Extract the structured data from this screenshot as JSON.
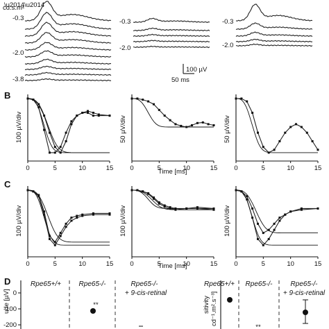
{
  "panels": {
    "A": {
      "unit_label": "cd.s.m²",
      "intensity_labels_left": [
        "-0.3",
        "-2.0",
        "-3.8"
      ],
      "intensity_labels_mid": [
        "-0.3",
        "-2.0"
      ],
      "intensity_labels_right": [
        "-0.3",
        "-2.0"
      ],
      "scalebar_voltage": "100 µV",
      "scalebar_time": "50 ms"
    },
    "B": {
      "label": "B",
      "ylabels": [
        "100 µV/div",
        "50 µV/div",
        "50 µV/div"
      ],
      "xlabel": "Time [ms]",
      "xticks": [
        "0",
        "5",
        "10",
        "15"
      ]
    },
    "C": {
      "label": "C",
      "ylabels": [
        "100 µV/div",
        "100 µV/div",
        "100 µV/div"
      ],
      "xlabel": "Time [ms]",
      "xticks": [
        "0",
        "5",
        "10",
        "15"
      ]
    },
    "D": {
      "label": "D",
      "left_ylabel": "ude [µV]",
      "left_yticks": [
        "0",
        "-100",
        "-200"
      ],
      "genotypes_left": [
        "Rpe65+/+",
        "Rpe65-/-",
        "Rpe65-/-"
      ],
      "genotype_note_left": "+ 9-cis-retinal",
      "significance_left": "**",
      "right_ylabel_1": "sitivity",
      "right_ylabel_2": "cd⁻¹.m².s⁻³]",
      "genotypes_right": [
        "Rpe65+/+",
        "Rpe65-/-",
        "Rpe65-/-"
      ],
      "genotype_note_right": "+ 9-cis-retinal",
      "significance_right": "**"
    }
  },
  "chart_data": [
    {
      "type": "line",
      "panel": "B",
      "xlabel": "Time [ms]",
      "xlim": [
        0,
        15
      ],
      "subplots": [
        {
          "ylabel": "100 µV/div",
          "series": [
            {
              "x": [
                0,
                1,
                2,
                3,
                4,
                5,
                6,
                7,
                8,
                9,
                10,
                11,
                12,
                13,
                15
              ],
              "y": [
                0,
                -0.02,
                -0.15,
                -0.55,
                -0.95,
                -0.95,
                -0.85,
                -0.6,
                -0.4,
                -0.3,
                -0.25,
                -0.25,
                -0.3,
                -0.3,
                -0.3
              ]
            },
            {
              "x": [
                0,
                1,
                2,
                3,
                4,
                5,
                6,
                7,
                8,
                9,
                10,
                11,
                12,
                13,
                15
              ],
              "y": [
                0,
                -0.02,
                -0.1,
                -0.3,
                -0.6,
                -0.85,
                -0.95,
                -0.75,
                -0.45,
                -0.3,
                -0.25,
                -0.22,
                -0.25,
                -0.28,
                -0.3
              ]
            }
          ]
        },
        {
          "ylabel": "50 µV/div",
          "series": [
            {
              "x": [
                0,
                1,
                2,
                3,
                4,
                5,
                6,
                7,
                8,
                9,
                10,
                11,
                12,
                13,
                14,
                15
              ],
              "y": [
                0,
                0,
                -0.02,
                -0.05,
                -0.1,
                -0.2,
                -0.3,
                -0.38,
                -0.45,
                -0.48,
                -0.5,
                -0.47,
                -0.43,
                -0.42,
                -0.45,
                -0.47
              ]
            }
          ]
        },
        {
          "ylabel": "50 µV/div",
          "series": [
            {
              "x": [
                0,
                1,
                2,
                3,
                4,
                5,
                6,
                7,
                8,
                9,
                10,
                11,
                12,
                13,
                14,
                15
              ],
              "y": [
                0,
                0,
                -0.05,
                -0.25,
                -0.6,
                -0.85,
                -0.95,
                -0.9,
                -0.75,
                -0.6,
                -0.5,
                -0.45,
                -0.5,
                -0.6,
                -0.75,
                -0.9
              ]
            }
          ]
        }
      ]
    },
    {
      "type": "line",
      "panel": "C",
      "xlabel": "Time [ms]",
      "xlim": [
        0,
        15
      ],
      "subplots": [
        {
          "ylabel": "100 µV/div",
          "series": [
            {
              "x": [
                0,
                1,
                2,
                3,
                4,
                5,
                6,
                7,
                8,
                9,
                10,
                12,
                15
              ],
              "y": [
                0,
                -0.02,
                -0.1,
                -0.4,
                -0.8,
                -0.9,
                -0.75,
                -0.6,
                -0.5,
                -0.45,
                -0.42,
                -0.4,
                -0.4
              ]
            },
            {
              "x": [
                0,
                1,
                2,
                3,
                4,
                5,
                6,
                7,
                8,
                9,
                10,
                12,
                15
              ],
              "y": [
                0,
                -0.02,
                -0.08,
                -0.35,
                -0.75,
                -0.85,
                -0.7,
                -0.55,
                -0.45,
                -0.42,
                -0.4,
                -0.38,
                -0.38
              ]
            }
          ]
        },
        {
          "ylabel": "100 µV/div",
          "series": [
            {
              "x": [
                0,
                1,
                2,
                3,
                4,
                5,
                6,
                7,
                8,
                10,
                12,
                15
              ],
              "y": [
                0,
                0,
                -0.02,
                -0.05,
                -0.12,
                -0.2,
                -0.25,
                -0.28,
                -0.3,
                -0.3,
                -0.28,
                -0.3
              ]
            },
            {
              "x": [
                0,
                1,
                2,
                3,
                4,
                5,
                6,
                7,
                8,
                10,
                12,
                15
              ],
              "y": [
                0,
                0,
                -0.02,
                -0.06,
                -0.14,
                -0.22,
                -0.27,
                -0.3,
                -0.32,
                -0.3,
                -0.3,
                -0.32
              ]
            }
          ]
        },
        {
          "ylabel": "100 µV/div",
          "series": [
            {
              "x": [
                0,
                1,
                2,
                3,
                4,
                5,
                6,
                7,
                8,
                9,
                10,
                12,
                15
              ],
              "y": [
                0,
                -0.02,
                -0.15,
                -0.45,
                -0.8,
                -0.9,
                -0.8,
                -0.65,
                -0.5,
                -0.4,
                -0.35,
                -0.3,
                -0.3
              ]
            },
            {
              "x": [
                0,
                1,
                2,
                3,
                4,
                5,
                6,
                7,
                8,
                9,
                10,
                12,
                15
              ],
              "y": [
                0,
                -0.02,
                -0.1,
                -0.3,
                -0.55,
                -0.7,
                -0.65,
                -0.55,
                -0.45,
                -0.4,
                -0.35,
                -0.32,
                -0.3
              ]
            }
          ]
        }
      ]
    },
    {
      "type": "scatter",
      "panel": "D-left",
      "ylabel": "ude [µV]",
      "ylim": [
        -250,
        0
      ],
      "categories": [
        "Rpe65+/+",
        "Rpe65-/-",
        "Rpe65-/- + 9-cis-retinal"
      ],
      "values": [
        null,
        -110,
        null
      ]
    },
    {
      "type": "scatter",
      "panel": "D-right",
      "categories": [
        "Rpe65+/+",
        "Rpe65-/-",
        "Rpe65-/- + 9-cis-retinal"
      ],
      "values": [
        3.2,
        null,
        2.4
      ]
    }
  ]
}
